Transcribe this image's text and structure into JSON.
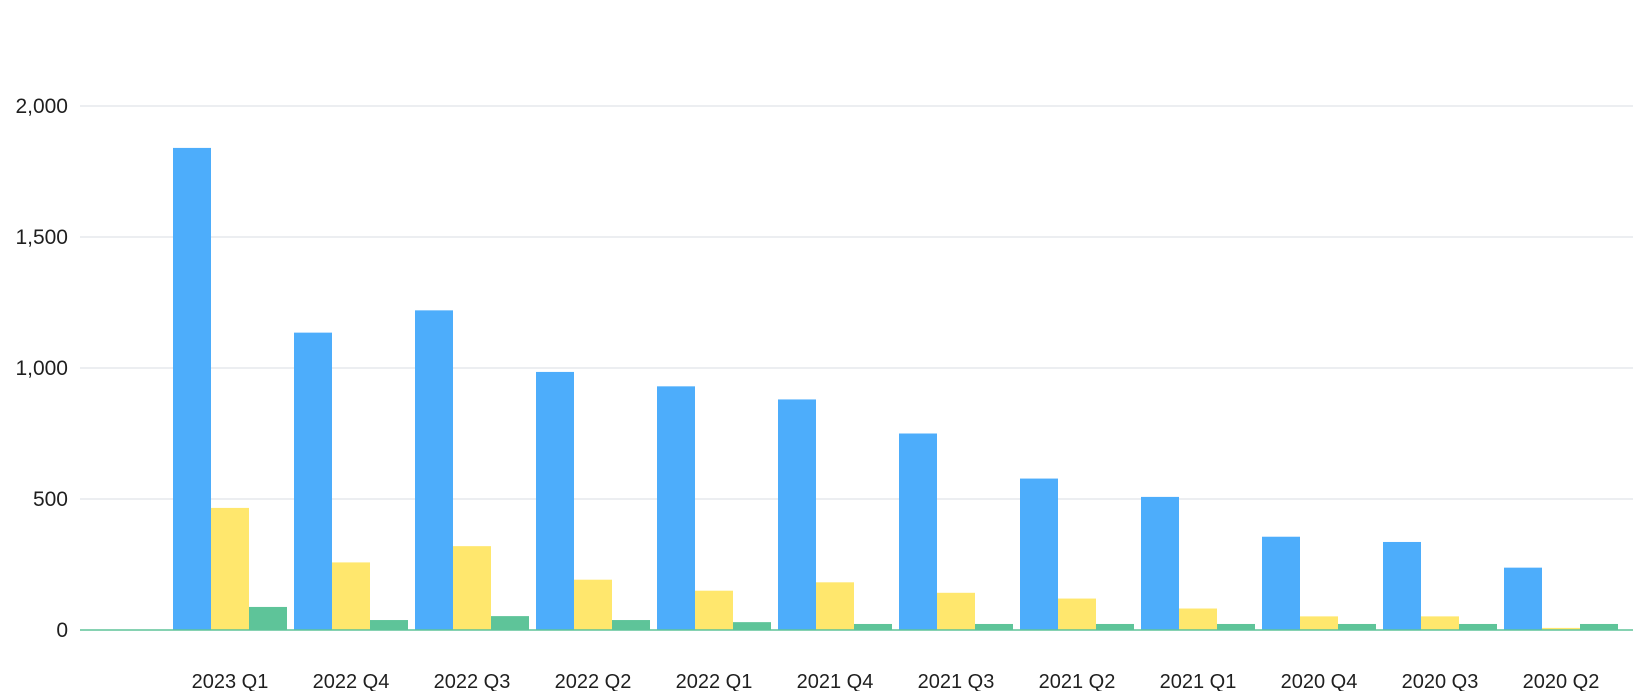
{
  "chart_data": {
    "type": "bar",
    "categories": [
      "2023 Q1",
      "2022 Q4",
      "2022 Q3",
      "2022 Q2",
      "2022 Q1",
      "2021 Q4",
      "2021 Q3",
      "2021 Q2",
      "2021 Q1",
      "2020 Q4",
      "2020 Q3",
      "2020 Q2"
    ],
    "series": [
      {
        "color": "#4dadfb",
        "values": [
          1840,
          1135,
          1220,
          985,
          930,
          880,
          750,
          578,
          508,
          356,
          336,
          238
        ]
      },
      {
        "color": "#ffe76d",
        "values": [
          466,
          258,
          320,
          192,
          150,
          182,
          142,
          120,
          82,
          52,
          52,
          8
        ]
      },
      {
        "color": "#5ec499",
        "values": [
          88,
          38,
          53,
          38,
          30,
          23,
          23,
          23,
          23,
          23,
          23,
          23
        ]
      }
    ],
    "ylim": [
      0,
      2000
    ],
    "yticks": [
      0,
      500,
      1000,
      1500,
      2000
    ],
    "ytick_labels": [
      "0",
      "500",
      "1,000",
      "1,500",
      "2,000"
    ],
    "grid": true,
    "title": "",
    "xlabel": "",
    "ylabel": ""
  }
}
